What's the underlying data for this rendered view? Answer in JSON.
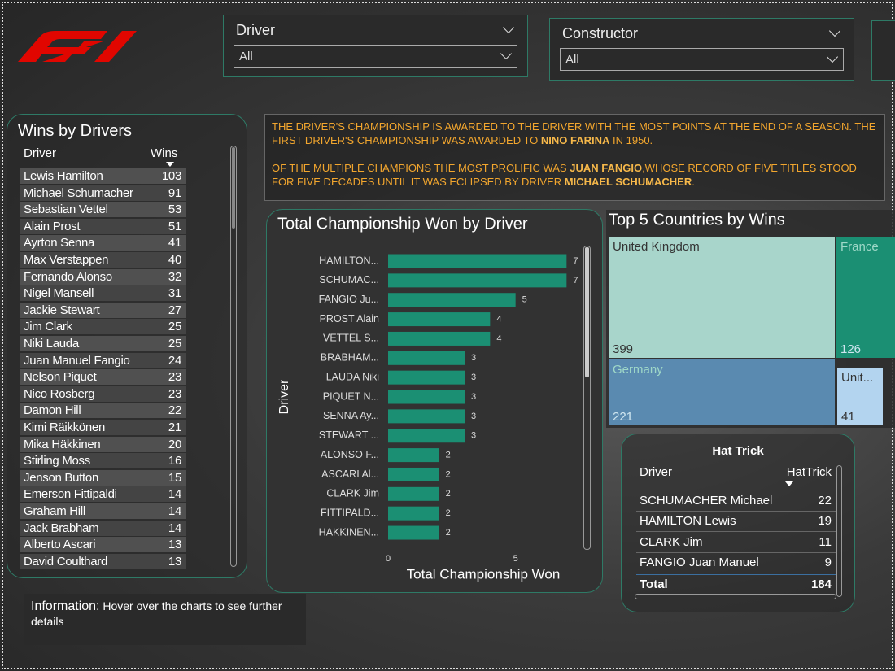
{
  "filters": [
    {
      "label": "Driver",
      "value": "All"
    },
    {
      "label": "Constructor",
      "value": "All"
    }
  ],
  "wins_by_drivers": {
    "title": "Wins by Drivers",
    "columns": [
      "Driver",
      "Wins"
    ],
    "rows": [
      [
        "Lewis Hamilton",
        103
      ],
      [
        "Michael Schumacher",
        91
      ],
      [
        "Sebastian Vettel",
        53
      ],
      [
        "Alain Prost",
        51
      ],
      [
        "Ayrton Senna",
        41
      ],
      [
        "Max Verstappen",
        40
      ],
      [
        "Fernando Alonso",
        32
      ],
      [
        "Nigel Mansell",
        31
      ],
      [
        "Jackie Stewart",
        27
      ],
      [
        "Jim Clark",
        25
      ],
      [
        "Niki Lauda",
        25
      ],
      [
        "Juan Manuel Fangio",
        24
      ],
      [
        "Nelson Piquet",
        23
      ],
      [
        "Nico Rosberg",
        23
      ],
      [
        "Damon Hill",
        22
      ],
      [
        "Kimi Räikkönen",
        21
      ],
      [
        "Mika Häkkinen",
        20
      ],
      [
        "Stirling Moss",
        16
      ],
      [
        "Jenson Button",
        15
      ],
      [
        "Emerson Fittipaldi",
        14
      ],
      [
        "Graham Hill",
        14
      ],
      [
        "Jack Brabham",
        14
      ],
      [
        "Alberto Ascari",
        13
      ],
      [
        "David Coulthard",
        13
      ]
    ]
  },
  "info_text": {
    "paragraphs": [
      [
        {
          "text": "THE DRIVER'S CHAMPIONSHIP IS AWARDED TO THE DRIVER WITH THE MOST POINTS AT THE END OF A SEASON. THE FIRST DRIVER'S CHAMPIONSHIP WAS AWARDED TO ",
          "strong": false
        },
        {
          "text": "NINO FARINA",
          "strong": true
        },
        {
          "text": " IN 1950.",
          "strong": false
        }
      ],
      [
        {
          "text": "OF THE MULTIPLE CHAMPIONS THE MOST PROLIFIC WAS ",
          "strong": false
        },
        {
          "text": "JUAN FANGIO",
          "strong": true
        },
        {
          "text": ",WHOSE RECORD OF FIVE TITLES STOOD FOR FIVE DECADES UNTIL IT WAS ECLIPSED BY DRIVER ",
          "strong": false
        },
        {
          "text": "MICHAEL SCHUMACHER",
          "strong": true
        },
        {
          "text": ".",
          "strong": false
        }
      ]
    ]
  },
  "chart_data": [
    {
      "type": "bar",
      "orientation": "horizontal",
      "title": "Total Championship Won by Driver",
      "x_label": "Total Championship Won",
      "y_label": "Driver",
      "categories": [
        "HAMILTON...",
        "SCHUMAC...",
        "FANGIO Ju...",
        "PROST Alain",
        "VETTEL S...",
        "BRABHAM...",
        "LAUDA Niki",
        "PIQUET N...",
        "SENNA Ay...",
        "STEWART ...",
        "ALONSO F...",
        "ASCARI Al...",
        "CLARK Jim",
        "FITTIPALD...",
        "HAKKINEN..."
      ],
      "values": [
        7,
        7,
        5,
        4,
        4,
        3,
        3,
        3,
        3,
        3,
        2,
        2,
        2,
        2,
        2
      ],
      "color": "#1b8f73",
      "xlim": [
        0,
        7.5
      ],
      "xticks": [
        0,
        5
      ]
    },
    {
      "type": "treemap",
      "title": "Top 5 Countries by Wins",
      "categories": [
        "United Kingdom",
        "France",
        "Germany",
        "Unit..."
      ],
      "values": [
        399,
        126,
        221,
        41
      ],
      "colors": [
        "#a8d5cb",
        "#1b8f73",
        "#5a8ab0",
        "#b3d4ef"
      ]
    }
  ],
  "hat_trick": {
    "title": "Hat Trick",
    "columns": [
      "Driver",
      "HatTrick"
    ],
    "rows": [
      [
        "SCHUMACHER Michael",
        22
      ],
      [
        "HAMILTON Lewis",
        19
      ],
      [
        "CLARK Jim",
        11
      ],
      [
        "FANGIO Juan Manuel",
        9
      ]
    ],
    "total": [
      "Total",
      184
    ]
  },
  "information": {
    "label": "Information:",
    "text": "Hover over the charts to see further details"
  }
}
